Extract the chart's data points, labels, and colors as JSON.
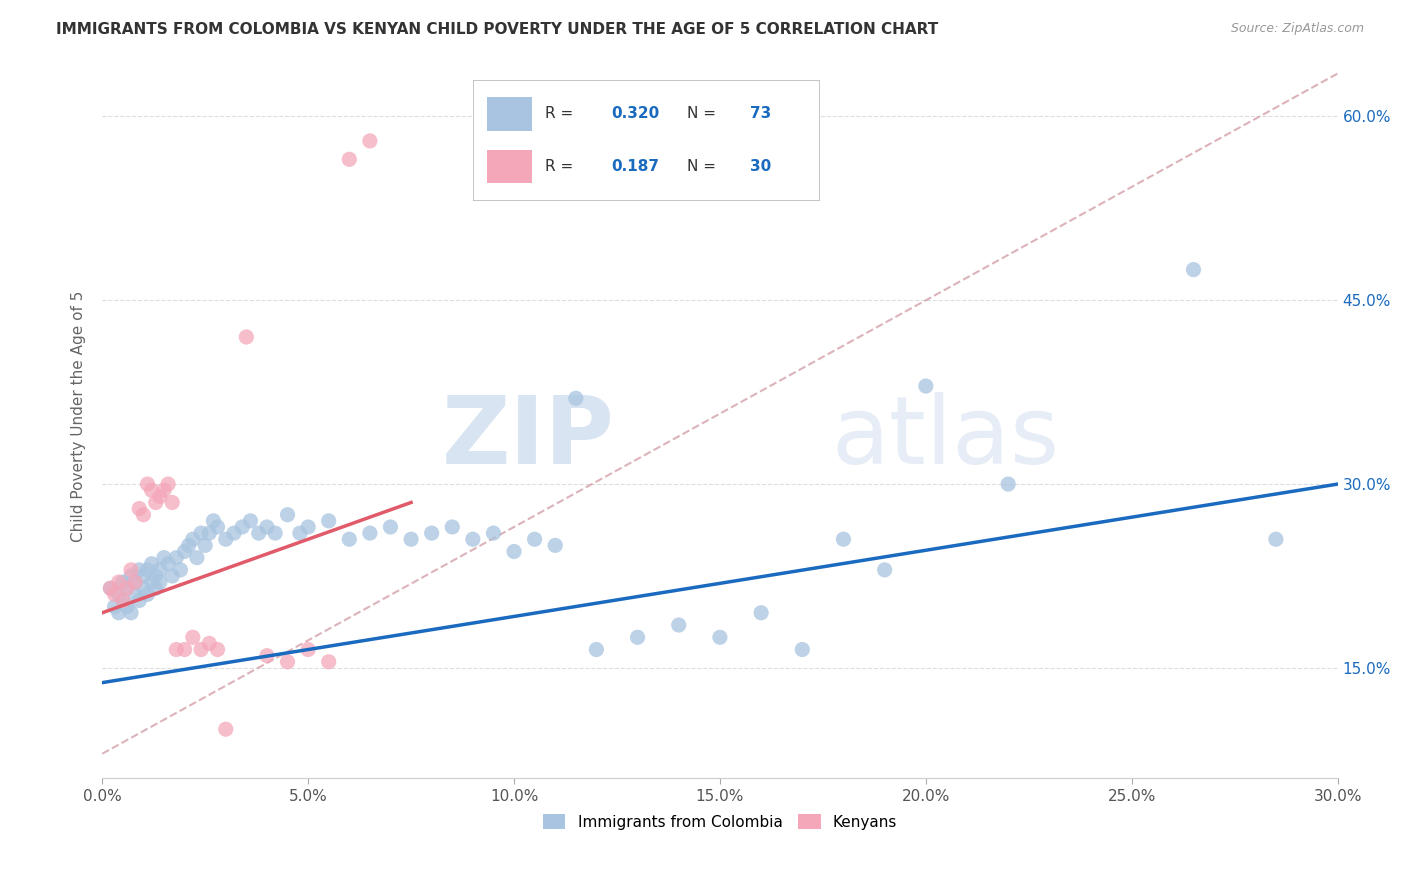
{
  "title": "IMMIGRANTS FROM COLOMBIA VS KENYAN CHILD POVERTY UNDER THE AGE OF 5 CORRELATION CHART",
  "source": "Source: ZipAtlas.com",
  "ylabel": "Child Poverty Under the Age of 5",
  "color_blue": "#a8c4e0",
  "color_pink": "#f4a7b9",
  "trendline_blue": "#1a6bbf",
  "trendline_pink": "#e05a6a",
  "trendline_dashed_color": "#d4a0a8",
  "tick_color_right": "#1a6bbf",
  "background": "#ffffff",
  "xlim": [
    0.0,
    0.3
  ],
  "ylim": [
    0.06,
    0.65
  ],
  "ytick_vals": [
    0.15,
    0.3,
    0.45,
    0.6
  ],
  "xtick_vals": [
    0.0,
    0.05,
    0.1,
    0.15,
    0.2,
    0.25,
    0.3
  ],
  "legend_r1": "0.320",
  "legend_n1": "73",
  "legend_r2": "0.187",
  "legend_n2": "30",
  "watermark_zip": "ZIP",
  "watermark_atlas": "atlas",
  "blue_scatter_x": [
    0.002,
    0.003,
    0.004,
    0.004,
    0.005,
    0.005,
    0.006,
    0.006,
    0.007,
    0.007,
    0.008,
    0.008,
    0.009,
    0.009,
    0.01,
    0.01,
    0.011,
    0.011,
    0.012,
    0.012,
    0.013,
    0.013,
    0.014,
    0.014,
    0.015,
    0.016,
    0.017,
    0.018,
    0.019,
    0.02,
    0.021,
    0.022,
    0.023,
    0.024,
    0.025,
    0.026,
    0.027,
    0.028,
    0.03,
    0.032,
    0.034,
    0.036,
    0.038,
    0.04,
    0.042,
    0.045,
    0.048,
    0.05,
    0.055,
    0.06,
    0.065,
    0.07,
    0.075,
    0.08,
    0.085,
    0.09,
    0.095,
    0.1,
    0.105,
    0.11,
    0.115,
    0.12,
    0.13,
    0.14,
    0.15,
    0.16,
    0.17,
    0.18,
    0.19,
    0.2,
    0.22,
    0.265,
    0.285
  ],
  "blue_scatter_y": [
    0.215,
    0.2,
    0.21,
    0.195,
    0.22,
    0.205,
    0.215,
    0.2,
    0.225,
    0.195,
    0.22,
    0.21,
    0.23,
    0.205,
    0.225,
    0.215,
    0.23,
    0.21,
    0.22,
    0.235,
    0.225,
    0.215,
    0.23,
    0.22,
    0.24,
    0.235,
    0.225,
    0.24,
    0.23,
    0.245,
    0.25,
    0.255,
    0.24,
    0.26,
    0.25,
    0.26,
    0.27,
    0.265,
    0.255,
    0.26,
    0.265,
    0.27,
    0.26,
    0.265,
    0.26,
    0.275,
    0.26,
    0.265,
    0.27,
    0.255,
    0.26,
    0.265,
    0.255,
    0.26,
    0.265,
    0.255,
    0.26,
    0.245,
    0.255,
    0.25,
    0.37,
    0.165,
    0.175,
    0.185,
    0.175,
    0.195,
    0.165,
    0.255,
    0.23,
    0.38,
    0.3,
    0.475,
    0.255
  ],
  "pink_scatter_x": [
    0.002,
    0.003,
    0.004,
    0.005,
    0.006,
    0.007,
    0.008,
    0.009,
    0.01,
    0.011,
    0.012,
    0.013,
    0.014,
    0.015,
    0.016,
    0.017,
    0.018,
    0.02,
    0.022,
    0.024,
    0.026,
    0.028,
    0.03,
    0.035,
    0.04,
    0.045,
    0.05,
    0.055,
    0.06,
    0.065
  ],
  "pink_scatter_y": [
    0.215,
    0.21,
    0.22,
    0.205,
    0.215,
    0.23,
    0.22,
    0.28,
    0.275,
    0.3,
    0.295,
    0.285,
    0.29,
    0.295,
    0.3,
    0.285,
    0.165,
    0.165,
    0.175,
    0.165,
    0.17,
    0.165,
    0.1,
    0.42,
    0.16,
    0.155,
    0.165,
    0.155,
    0.565,
    0.58
  ]
}
